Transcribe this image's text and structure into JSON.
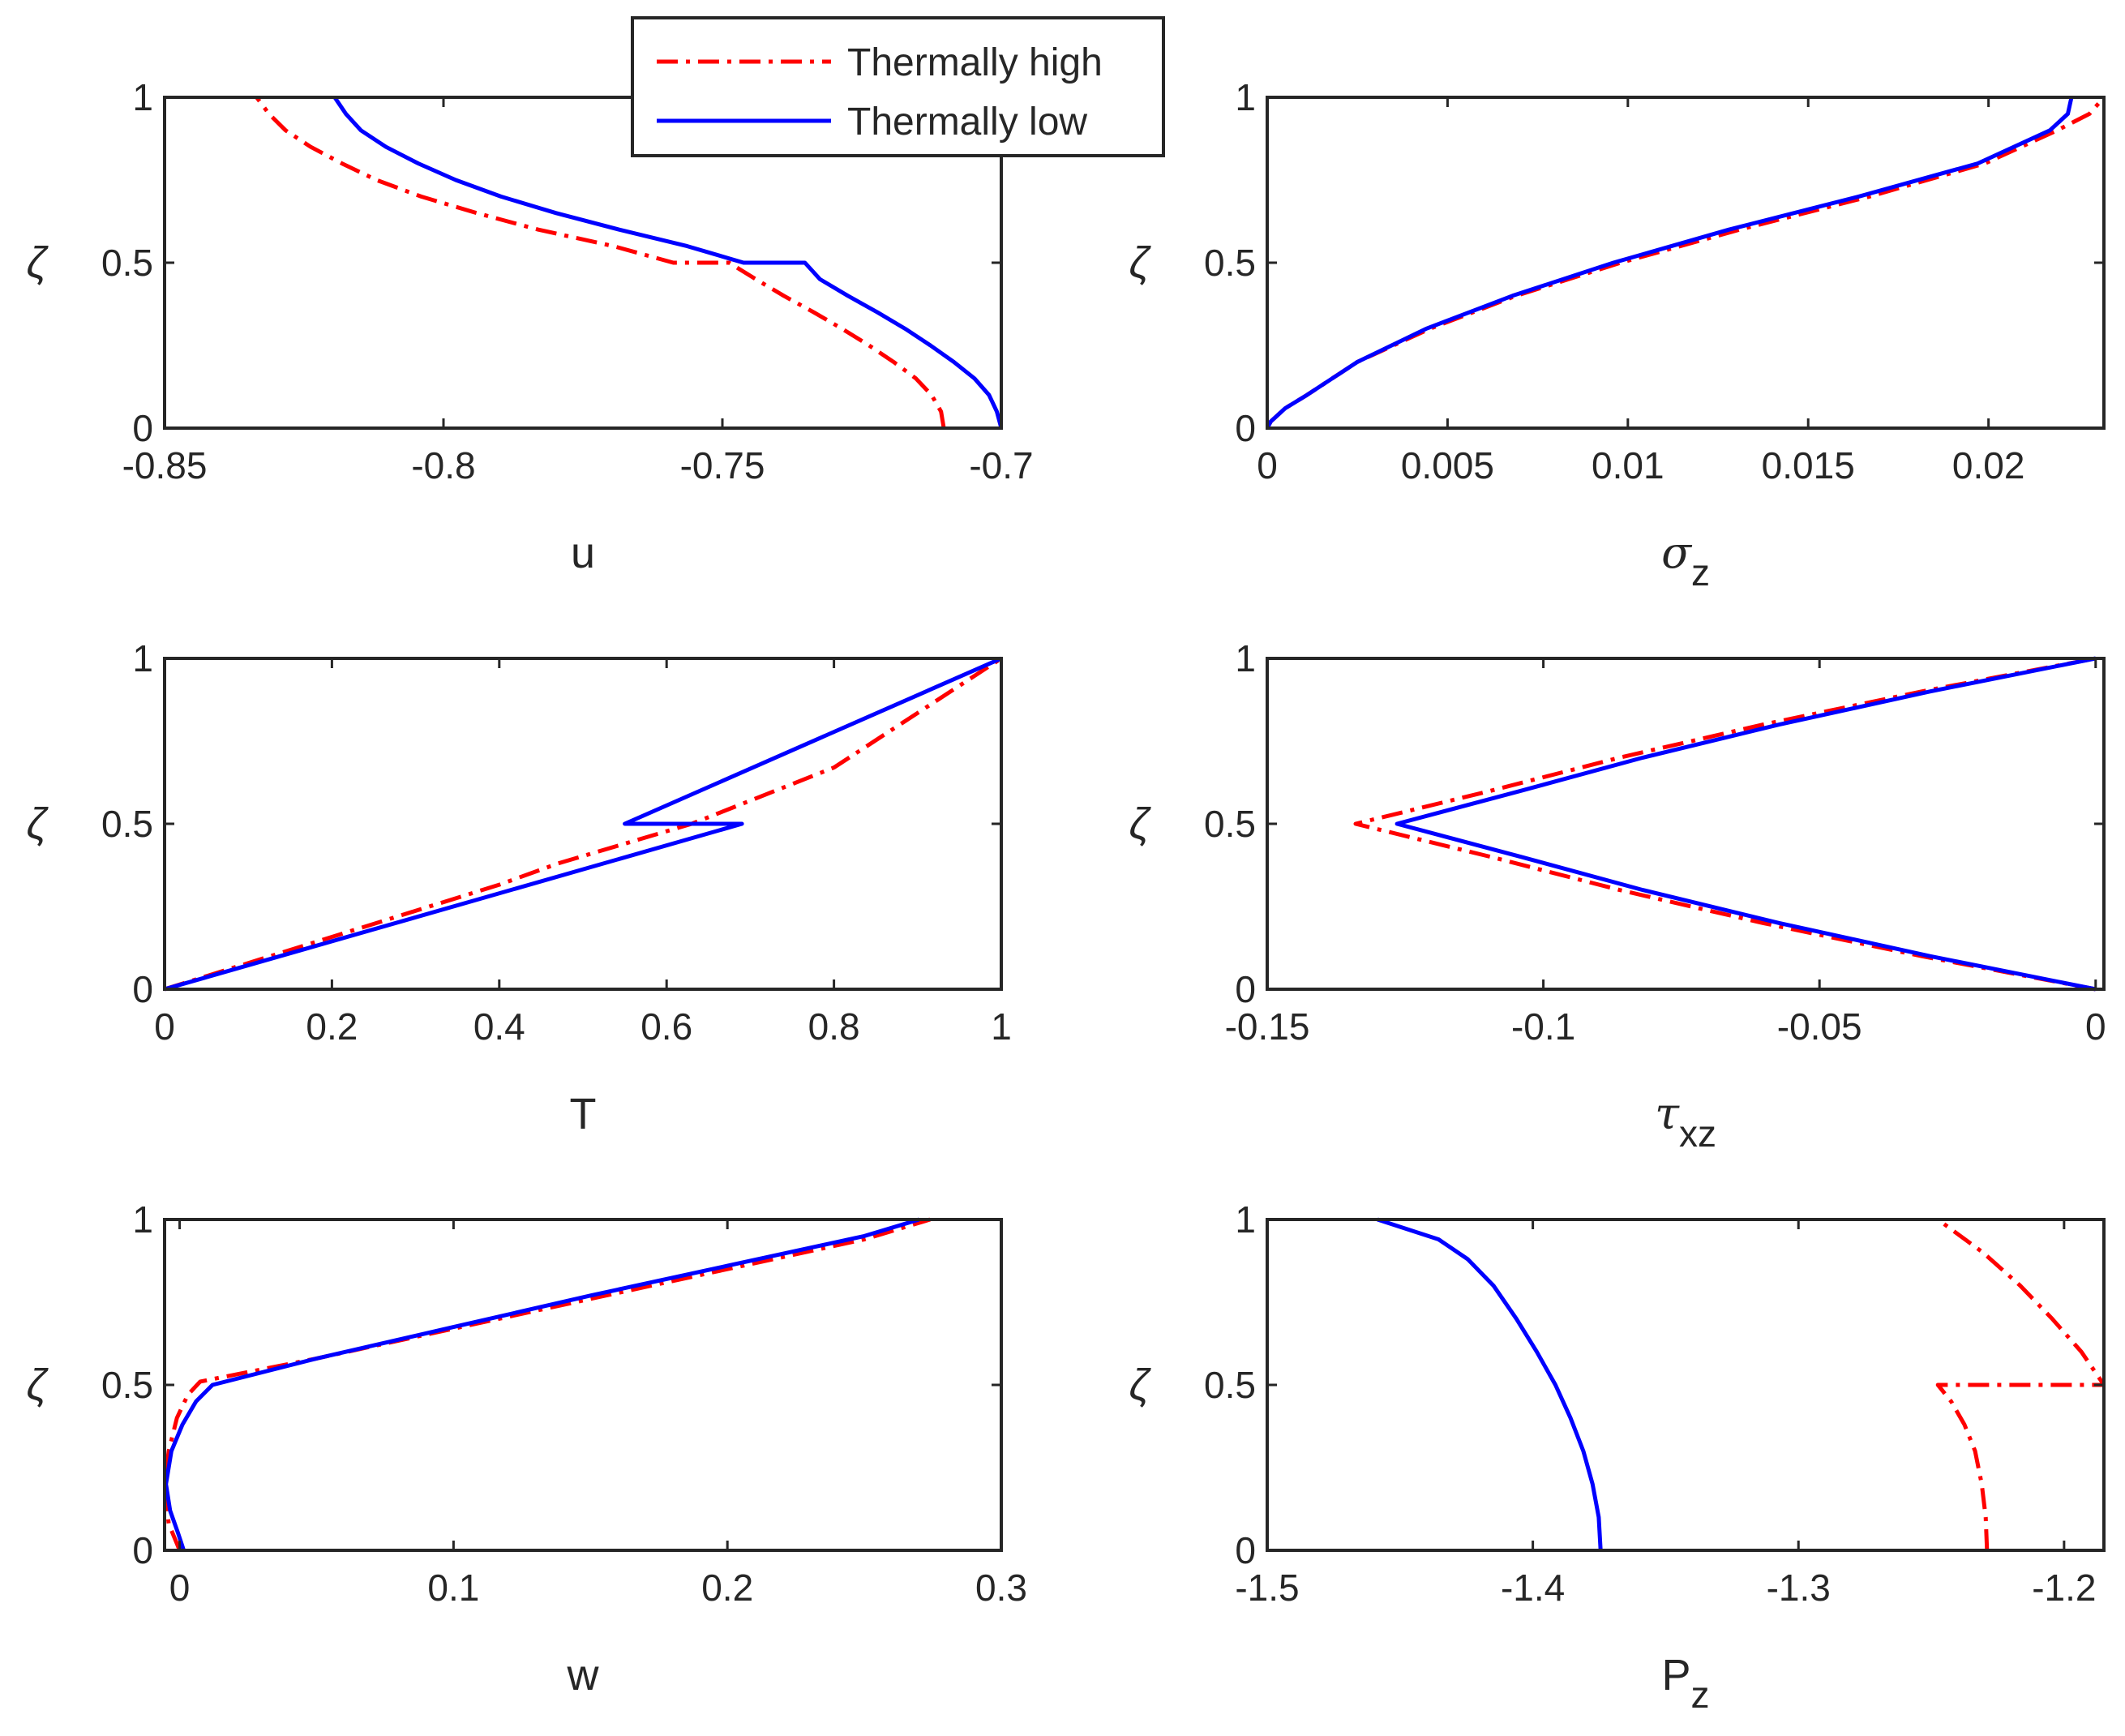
{
  "colors": {
    "high": "#ff0000",
    "low": "#0000ff",
    "axis": "#262626"
  },
  "legend": {
    "placement": "top-center",
    "entries": [
      {
        "label": "Thermally high",
        "style": "dash-dot",
        "color": "#ff0000"
      },
      {
        "label": "Thermally low",
        "style": "solid",
        "color": "#0000ff"
      }
    ]
  },
  "chart_data": [
    {
      "id": "u",
      "type": "line",
      "xlabel_main": "u",
      "xlabel_sub": "",
      "xlabel_greek": false,
      "ylabel": "ζ",
      "xlim": [
        -0.85,
        -0.7
      ],
      "ylim": [
        0,
        1
      ],
      "xticks": [
        -0.85,
        -0.8,
        -0.75,
        -0.7
      ],
      "xtick_labels": [
        "-0.85",
        "-0.8",
        "-0.75",
        "-0.7"
      ],
      "yticks": [
        0,
        0.5,
        1
      ],
      "ytick_labels": [
        "0",
        "0.5",
        "1"
      ],
      "series": [
        {
          "name": "Thermally high",
          "points": [
            [
              -0.7103,
              0
            ],
            [
              -0.7108,
              0.05
            ],
            [
              -0.7125,
              0.1
            ],
            [
              -0.7153,
              0.15
            ],
            [
              -0.7193,
              0.2
            ],
            [
              -0.7237,
              0.25
            ],
            [
              -0.7285,
              0.3
            ],
            [
              -0.7336,
              0.35
            ],
            [
              -0.739,
              0.4
            ],
            [
              -0.744,
              0.45
            ],
            [
              -0.7488,
              0.5
            ],
            [
              -0.7588,
              0.5
            ],
            [
              -0.7695,
              0.55
            ],
            [
              -0.783,
              0.6
            ],
            [
              -0.794,
              0.65
            ],
            [
              -0.804,
              0.7
            ],
            [
              -0.812,
              0.75
            ],
            [
              -0.8182,
              0.8
            ],
            [
              -0.8238,
              0.85
            ],
            [
              -0.8283,
              0.9
            ],
            [
              -0.8313,
              0.95
            ],
            [
              -0.8335,
              1
            ]
          ]
        },
        {
          "name": "Thermally low",
          "points": [
            [
              -0.7,
              0
            ],
            [
              -0.7008,
              0.05
            ],
            [
              -0.7022,
              0.1
            ],
            [
              -0.7048,
              0.15
            ],
            [
              -0.7085,
              0.2
            ],
            [
              -0.7127,
              0.25
            ],
            [
              -0.7172,
              0.3
            ],
            [
              -0.7222,
              0.35
            ],
            [
              -0.7275,
              0.4
            ],
            [
              -0.7325,
              0.45
            ],
            [
              -0.7352,
              0.5
            ],
            [
              -0.7462,
              0.5
            ],
            [
              -0.7563,
              0.55
            ],
            [
              -0.7685,
              0.6
            ],
            [
              -0.7798,
              0.65
            ],
            [
              -0.7897,
              0.7
            ],
            [
              -0.7978,
              0.75
            ],
            [
              -0.8045,
              0.8
            ],
            [
              -0.8103,
              0.85
            ],
            [
              -0.8148,
              0.9
            ],
            [
              -0.8175,
              0.95
            ],
            [
              -0.8195,
              1
            ]
          ]
        }
      ]
    },
    {
      "id": "sigma",
      "type": "line",
      "xlabel_main": "σ",
      "xlabel_sub": "z",
      "xlabel_greek": true,
      "ylabel": "ζ",
      "xlim": [
        0,
        0.0232
      ],
      "ylim": [
        0,
        1
      ],
      "xticks": [
        0,
        0.005,
        0.01,
        0.015,
        0.02
      ],
      "xtick_labels": [
        "0",
        "0.005",
        "0.01",
        "0.015",
        "0.02"
      ],
      "yticks": [
        0,
        0.5,
        1
      ],
      "ytick_labels": [
        "0",
        "0.5",
        "1"
      ],
      "series": [
        {
          "name": "Thermally high",
          "points": [
            [
              0,
              0
            ],
            [
              0.0001,
              0.02
            ],
            [
              0.0005,
              0.06
            ],
            [
              0.0011,
              0.1
            ],
            [
              0.0025,
              0.2
            ],
            [
              0.0045,
              0.3
            ],
            [
              0.0069,
              0.4
            ],
            [
              0.0098,
              0.5
            ],
            [
              0.0131,
              0.6
            ],
            [
              0.0167,
              0.7
            ],
            [
              0.0199,
              0.8
            ],
            [
              0.0219,
              0.9
            ],
            [
              0.0228,
              0.95
            ],
            [
              0.0232,
              1
            ]
          ]
        },
        {
          "name": "Thermally low",
          "points": [
            [
              0,
              0
            ],
            [
              0.0001,
              0.02
            ],
            [
              0.0005,
              0.06
            ],
            [
              0.0011,
              0.1
            ],
            [
              0.0025,
              0.2
            ],
            [
              0.0044,
              0.3
            ],
            [
              0.0068,
              0.4
            ],
            [
              0.0096,
              0.5
            ],
            [
              0.0128,
              0.6
            ],
            [
              0.0164,
              0.7
            ],
            [
              0.0197,
              0.8
            ],
            [
              0.0217,
              0.9
            ],
            [
              0.0222,
              0.95
            ],
            [
              0.0223,
              1
            ]
          ]
        }
      ]
    },
    {
      "id": "T",
      "type": "line",
      "xlabel_main": "T",
      "xlabel_sub": "",
      "xlabel_greek": false,
      "ylabel": "ζ",
      "xlim": [
        0,
        1
      ],
      "ylim": [
        0,
        1
      ],
      "xticks": [
        0,
        0.2,
        0.4,
        0.6,
        0.8,
        1
      ],
      "xtick_labels": [
        "0",
        "0.2",
        "0.4",
        "0.6",
        "0.8",
        "1"
      ],
      "yticks": [
        0,
        0.5,
        1
      ],
      "ytick_labels": [
        "0",
        "0.5",
        "1"
      ],
      "series": [
        {
          "name": "Thermally high",
          "points": [
            [
              0,
              0
            ],
            [
              0.2,
              0.158
            ],
            [
              0.4,
              0.316
            ],
            [
              0.47,
              0.38
            ],
            [
              0.63,
              0.5
            ],
            [
              0.8,
              0.67
            ],
            [
              1,
              1
            ]
          ]
        },
        {
          "name": "Thermally low",
          "points": [
            [
              0,
              0
            ],
            [
              0.69,
              0.5
            ],
            [
              0.55,
              0.5
            ],
            [
              1,
              1
            ]
          ]
        }
      ]
    },
    {
      "id": "tau",
      "type": "line",
      "xlabel_main": "τ",
      "xlabel_sub": "xz",
      "xlabel_greek": true,
      "ylabel": "ζ",
      "xlim": [
        -0.15,
        0.0015
      ],
      "ylim": [
        0,
        1
      ],
      "xticks": [
        -0.15,
        -0.1,
        -0.05,
        0
      ],
      "xtick_labels": [
        "-0.15",
        "-0.1",
        "-0.05",
        "0"
      ],
      "yticks": [
        0,
        0.5,
        1
      ],
      "ytick_labels": [
        "0",
        "0.5",
        "1"
      ],
      "series": [
        {
          "name": "Thermally high",
          "points": [
            [
              0,
              0
            ],
            [
              -0.0315,
              0.1
            ],
            [
              -0.0602,
              0.2
            ],
            [
              -0.0862,
              0.3
            ],
            [
              -0.1095,
              0.4
            ],
            [
              -0.134,
              0.5
            ],
            [
              -0.1095,
              0.6
            ],
            [
              -0.0862,
              0.7
            ],
            [
              -0.0602,
              0.8
            ],
            [
              -0.0315,
              0.9
            ],
            [
              0,
              1
            ]
          ]
        },
        {
          "name": "Thermally low",
          "points": [
            [
              0,
              0
            ],
            [
              -0.03,
              0.1
            ],
            [
              -0.0573,
              0.2
            ],
            [
              -0.082,
              0.3
            ],
            [
              -0.104,
              0.4
            ],
            [
              -0.1265,
              0.5
            ],
            [
              -0.104,
              0.6
            ],
            [
              -0.082,
              0.7
            ],
            [
              -0.0573,
              0.8
            ],
            [
              -0.03,
              0.9
            ],
            [
              0,
              1
            ]
          ]
        }
      ]
    },
    {
      "id": "w",
      "type": "line",
      "xlabel_main": "w",
      "xlabel_sub": "",
      "xlabel_greek": false,
      "ylabel": "ζ",
      "xlim": [
        -0.0055,
        0.3
      ],
      "ylim": [
        0,
        1
      ],
      "xticks": [
        0,
        0.1,
        0.2,
        0.3
      ],
      "xtick_labels": [
        "0",
        "0.1",
        "0.2",
        "0.3"
      ],
      "yticks": [
        0,
        0.5,
        1
      ],
      "ytick_labels": [
        "0",
        "0.5",
        "1"
      ],
      "series": [
        {
          "name": "Thermally high",
          "points": [
            [
              0,
              0
            ],
            [
              -0.004,
              0.08
            ],
            [
              -0.0055,
              0.2
            ],
            [
              -0.004,
              0.3
            ],
            [
              -0.001,
              0.4
            ],
            [
              0.003,
              0.47
            ],
            [
              0.0075,
              0.51
            ],
            [
              0.05,
              0.58
            ],
            [
              0.1,
              0.67
            ],
            [
              0.15,
              0.76
            ],
            [
              0.2,
              0.85
            ],
            [
              0.25,
              0.94
            ],
            [
              0.274,
              1
            ]
          ]
        },
        {
          "name": "Thermally low",
          "points": [
            [
              0.0015,
              0
            ],
            [
              -0.0005,
              0.05
            ],
            [
              -0.0035,
              0.12
            ],
            [
              -0.005,
              0.2
            ],
            [
              -0.003,
              0.3
            ],
            [
              0.001,
              0.38
            ],
            [
              0.006,
              0.45
            ],
            [
              0.012,
              0.5
            ],
            [
              0.05,
              0.58
            ],
            [
              0.1,
              0.675
            ],
            [
              0.15,
              0.77
            ],
            [
              0.2,
              0.86
            ],
            [
              0.25,
              0.95
            ],
            [
              0.27,
              1
            ]
          ]
        }
      ]
    },
    {
      "id": "P",
      "type": "line",
      "xlabel_main": "P",
      "xlabel_sub": "z",
      "xlabel_greek": false,
      "ylabel": "ζ",
      "xlim": [
        -1.5,
        -1.185
      ],
      "ylim": [
        0,
        1
      ],
      "xticks": [
        -1.5,
        -1.4,
        -1.3,
        -1.2
      ],
      "xtick_labels": [
        "-1.5",
        "-1.4",
        "-1.3",
        "-1.2"
      ],
      "yticks": [
        0,
        0.5,
        1
      ],
      "ytick_labels": [
        "0",
        "0.5",
        "1"
      ],
      "series": [
        {
          "name": "Thermally high",
          "points": [
            [
              -1.229,
              0
            ],
            [
              -1.2295,
              0.1
            ],
            [
              -1.231,
              0.2
            ],
            [
              -1.2335,
              0.3
            ],
            [
              -1.2375,
              0.38
            ],
            [
              -1.2425,
              0.45
            ],
            [
              -1.2475,
              0.5
            ],
            [
              -1.185,
              0.5
            ],
            [
              -1.185,
              0.5
            ],
            [
              -1.1935,
              0.6
            ],
            [
              -1.2045,
              0.7
            ],
            [
              -1.2165,
              0.8
            ],
            [
              -1.2305,
              0.9
            ],
            [
              -1.2475,
              1
            ]
          ]
        },
        {
          "name": "Thermally low",
          "points": [
            [
              -1.3745,
              0
            ],
            [
              -1.3752,
              0.1
            ],
            [
              -1.3775,
              0.2
            ],
            [
              -1.381,
              0.3
            ],
            [
              -1.3858,
              0.4
            ],
            [
              -1.3915,
              0.5
            ],
            [
              -1.3985,
              0.6
            ],
            [
              -1.4062,
              0.7
            ],
            [
              -1.4148,
              0.8
            ],
            [
              -1.4245,
              0.88
            ],
            [
              -1.4355,
              0.94
            ],
            [
              -1.4585,
              1
            ]
          ]
        }
      ]
    }
  ]
}
